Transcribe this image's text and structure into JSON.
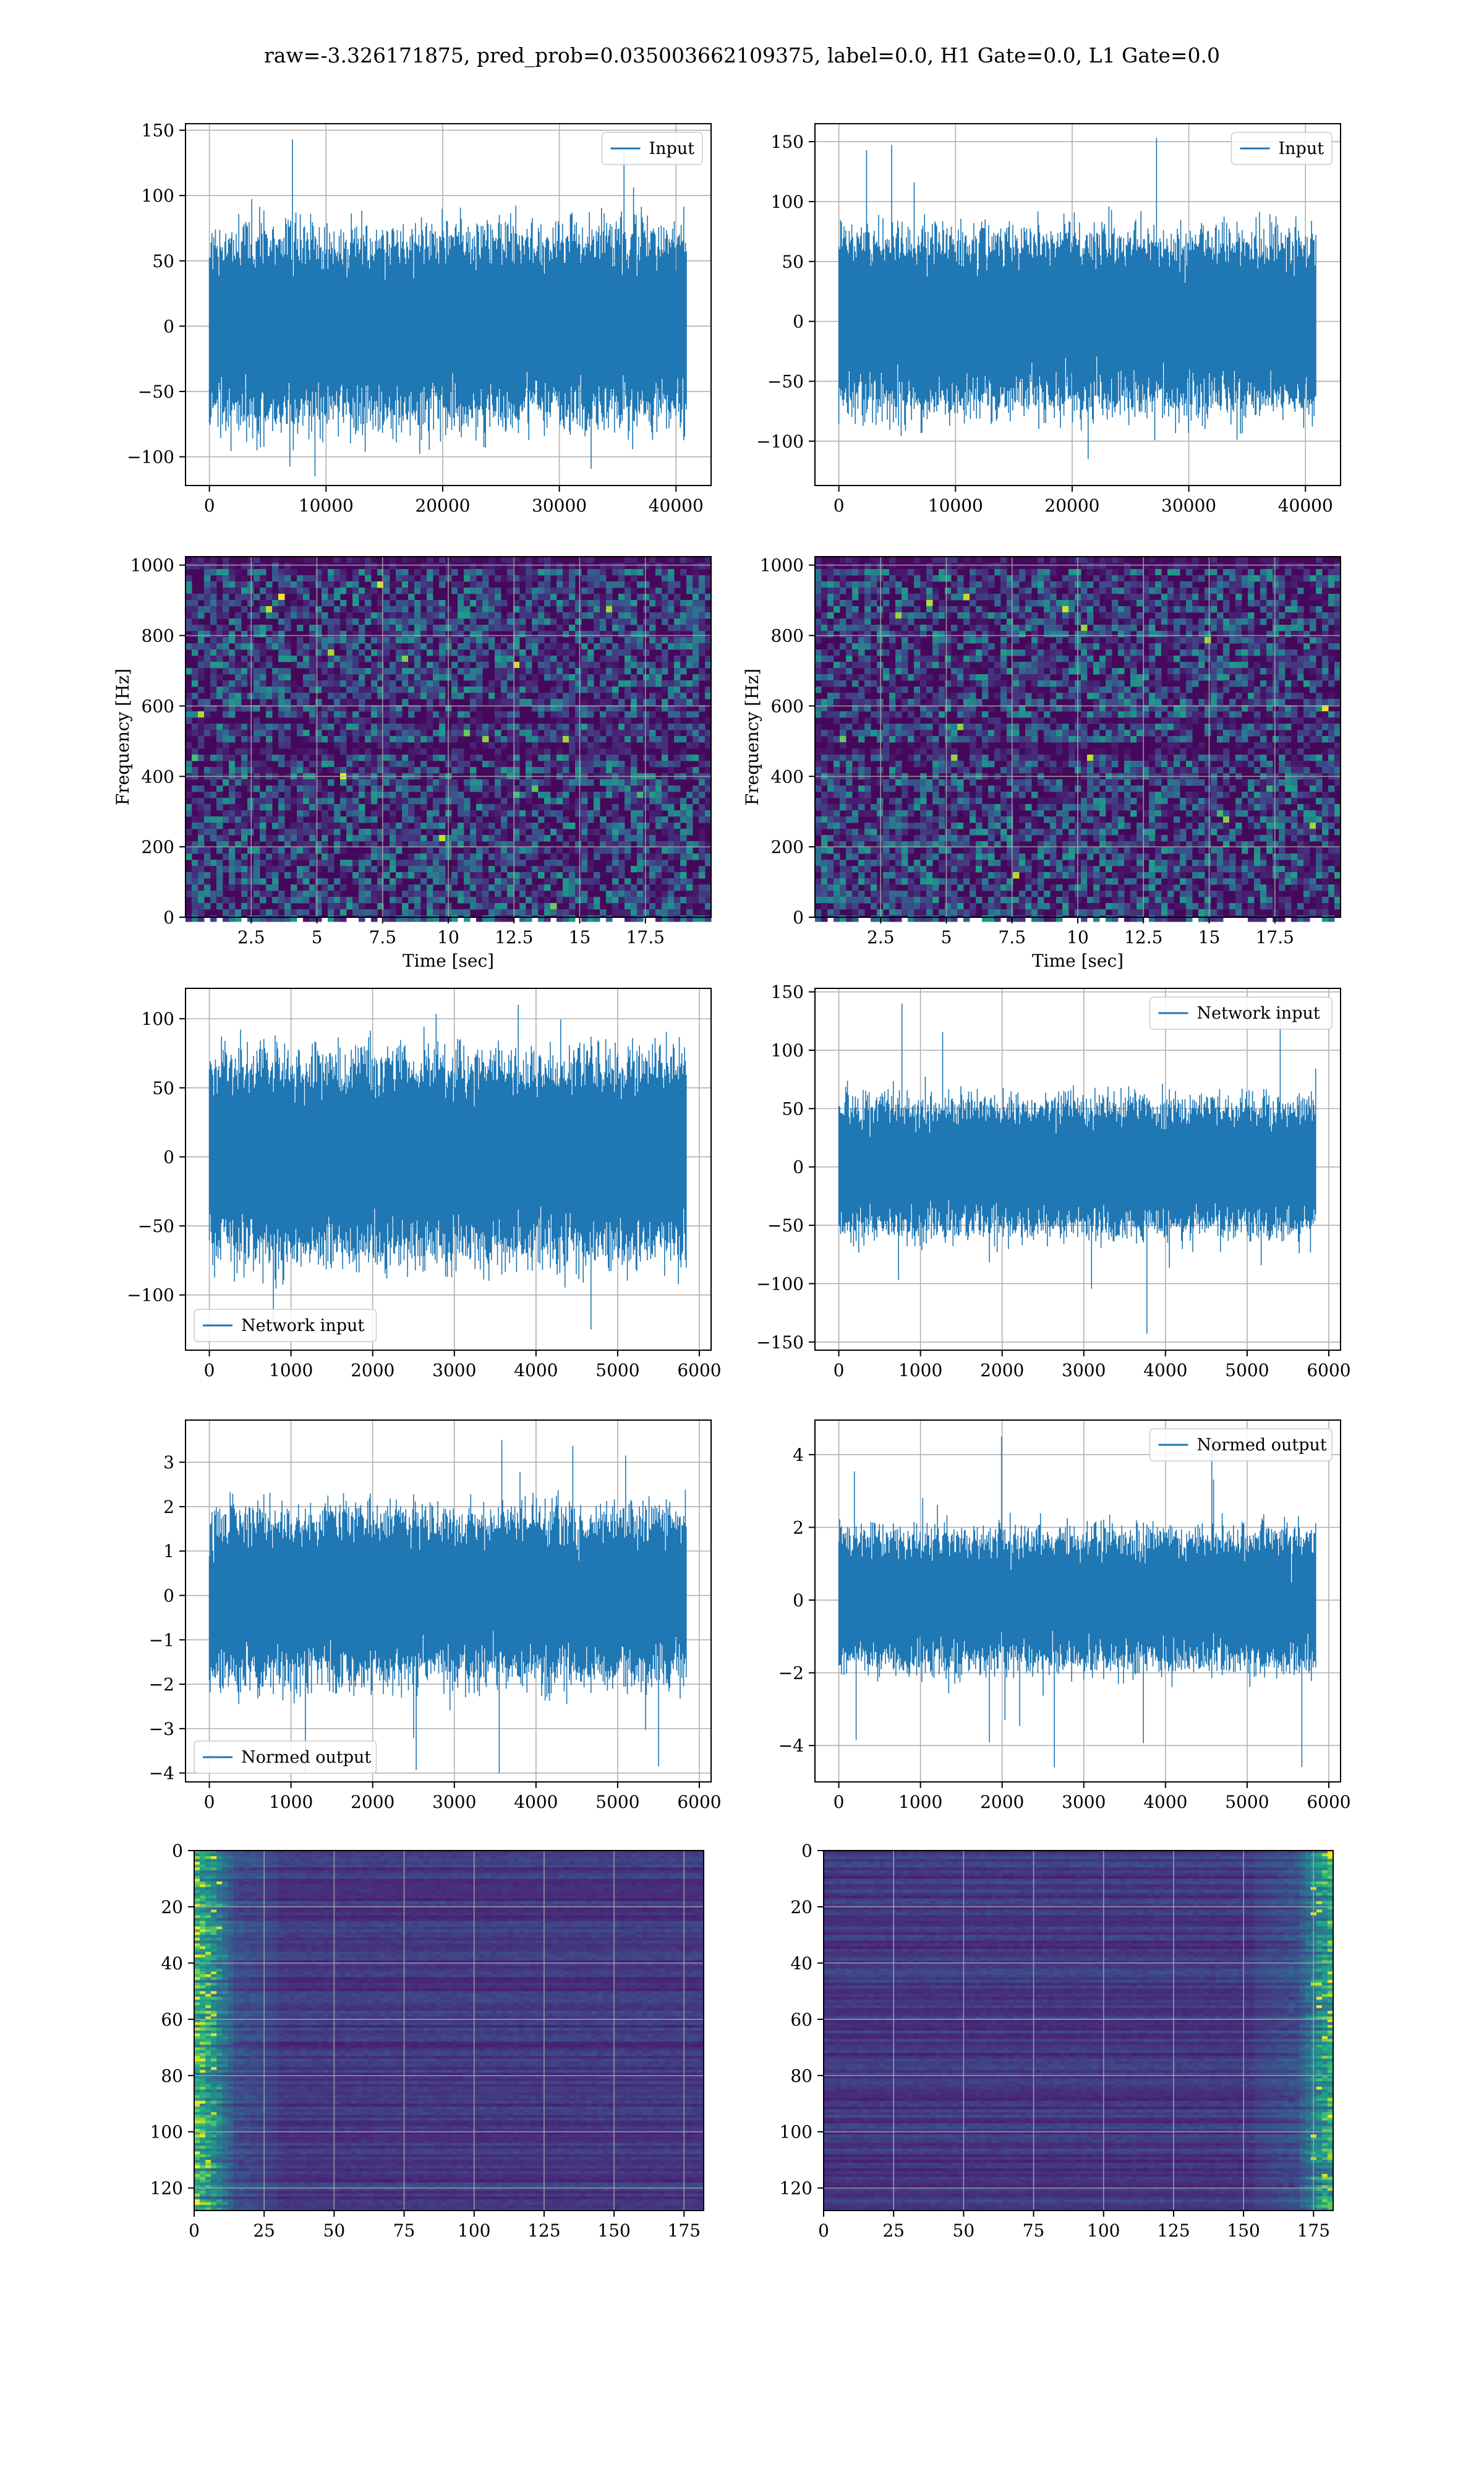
{
  "suptitle": "raw=-3.326171875, pred_prob=0.035003662109375, label=0.0, H1 Gate=0.0, L1 Gate=0.0",
  "colors": {
    "line": "#1f77b4",
    "grid": "#b0b0b0"
  },
  "chart_data": [
    {
      "type": "line",
      "row": 1,
      "col": 1,
      "series": [
        {
          "name": "Input"
        }
      ],
      "legend": "upper right",
      "xlim": [
        -2048,
        43008
      ],
      "ylim": [
        -122,
        155
      ],
      "xticks": [
        0,
        10000,
        20000,
        30000,
        40000
      ],
      "yticks": [
        -100,
        -50,
        0,
        50,
        100,
        150
      ],
      "signal": {
        "n": 40960,
        "envelope_lo": -70,
        "envelope_hi": 70,
        "min": -115,
        "max": 143
      },
      "grid": true
    },
    {
      "type": "line",
      "row": 1,
      "col": 2,
      "series": [
        {
          "name": "Input"
        }
      ],
      "legend": "upper right",
      "xlim": [
        -2048,
        43008
      ],
      "ylim": [
        -137,
        165
      ],
      "xticks": [
        0,
        10000,
        20000,
        30000,
        40000
      ],
      "yticks": [
        -100,
        -50,
        0,
        50,
        100,
        150
      ],
      "signal": {
        "n": 40960,
        "envelope_lo": -70,
        "envelope_hi": 70,
        "min": -115,
        "max": 153
      },
      "grid": true
    },
    {
      "type": "heatmap",
      "row": 2,
      "col": 1,
      "xlabel": "Time [sec]",
      "ylabel": "Frequency [Hz]",
      "xlim": [
        0,
        20
      ],
      "ylim": [
        0,
        1024
      ],
      "xticks": [
        2.5,
        5.0,
        7.5,
        10.0,
        12.5,
        15.0,
        17.5
      ],
      "yticks": [
        0,
        200,
        400,
        600,
        800,
        1000
      ],
      "colormap": "viridis",
      "grid": true
    },
    {
      "type": "heatmap",
      "row": 2,
      "col": 2,
      "xlabel": "Time [sec]",
      "ylabel": "Frequency [Hz]",
      "xlim": [
        0,
        20
      ],
      "ylim": [
        0,
        1024
      ],
      "xticks": [
        2.5,
        5.0,
        7.5,
        10.0,
        12.5,
        15.0,
        17.5
      ],
      "yticks": [
        0,
        200,
        400,
        600,
        800,
        1000
      ],
      "colormap": "viridis",
      "grid": true
    },
    {
      "type": "line",
      "row": 3,
      "col": 1,
      "series": [
        {
          "name": "Network input"
        }
      ],
      "legend": "lower left",
      "xlim": [
        -292,
        6144
      ],
      "ylim": [
        -140,
        122
      ],
      "xticks": [
        0,
        1000,
        2000,
        3000,
        4000,
        5000,
        6000
      ],
      "yticks": [
        -100,
        -50,
        0,
        50,
        100
      ],
      "signal": {
        "n": 5850,
        "envelope_lo": -70,
        "envelope_hi": 70,
        "min": -125,
        "max": 110
      },
      "grid": true
    },
    {
      "type": "line",
      "row": 3,
      "col": 2,
      "series": [
        {
          "name": "Network input"
        }
      ],
      "legend": "upper right",
      "xlim": [
        -292,
        6144
      ],
      "ylim": [
        -157,
        153
      ],
      "xticks": [
        0,
        1000,
        2000,
        3000,
        4000,
        5000,
        6000
      ],
      "yticks": [
        -150,
        -100,
        -50,
        0,
        50,
        100,
        150
      ],
      "signal": {
        "n": 5850,
        "envelope_lo": -55,
        "envelope_hi": 55,
        "min": -143,
        "max": 140
      },
      "grid": true
    },
    {
      "type": "line",
      "row": 4,
      "col": 1,
      "series": [
        {
          "name": "Normed output"
        }
      ],
      "legend": "lower left",
      "xlim": [
        -292,
        6144
      ],
      "ylim": [
        -4.2,
        3.95
      ],
      "xticks": [
        0,
        1000,
        2000,
        3000,
        4000,
        5000,
        6000
      ],
      "yticks": [
        -4,
        -3,
        -2,
        -1,
        0,
        1,
        2,
        3
      ],
      "signal": {
        "n": 5850,
        "envelope_lo": -1.8,
        "envelope_hi": 1.8,
        "min": -4.0,
        "max": 3.5
      },
      "grid": true
    },
    {
      "type": "line",
      "row": 4,
      "col": 2,
      "series": [
        {
          "name": "Normed output"
        }
      ],
      "legend": "upper right",
      "xlim": [
        -292,
        6144
      ],
      "ylim": [
        -5.0,
        4.95
      ],
      "xticks": [
        0,
        1000,
        2000,
        3000,
        4000,
        5000,
        6000
      ],
      "yticks": [
        -4,
        -2,
        0,
        2,
        4
      ],
      "signal": {
        "n": 5850,
        "envelope_lo": -1.8,
        "envelope_hi": 1.8,
        "min": -4.6,
        "max": 4.5
      },
      "grid": true
    },
    {
      "type": "heatmap",
      "row": 5,
      "col": 1,
      "xlim": [
        0,
        182
      ],
      "ylim": [
        128,
        0
      ],
      "xticks": [
        0,
        25,
        50,
        75,
        100,
        125,
        150,
        175
      ],
      "yticks": [
        0,
        20,
        40,
        60,
        80,
        100,
        120
      ],
      "colormap": "viridis",
      "bright_band": "left",
      "grid": true
    },
    {
      "type": "heatmap",
      "row": 5,
      "col": 2,
      "xlim": [
        0,
        182
      ],
      "ylim": [
        128,
        0
      ],
      "xticks": [
        0,
        25,
        50,
        75,
        100,
        125,
        150,
        175
      ],
      "yticks": [
        0,
        20,
        40,
        60,
        80,
        100,
        120
      ],
      "colormap": "viridis",
      "bright_band": "right",
      "grid": true
    }
  ]
}
